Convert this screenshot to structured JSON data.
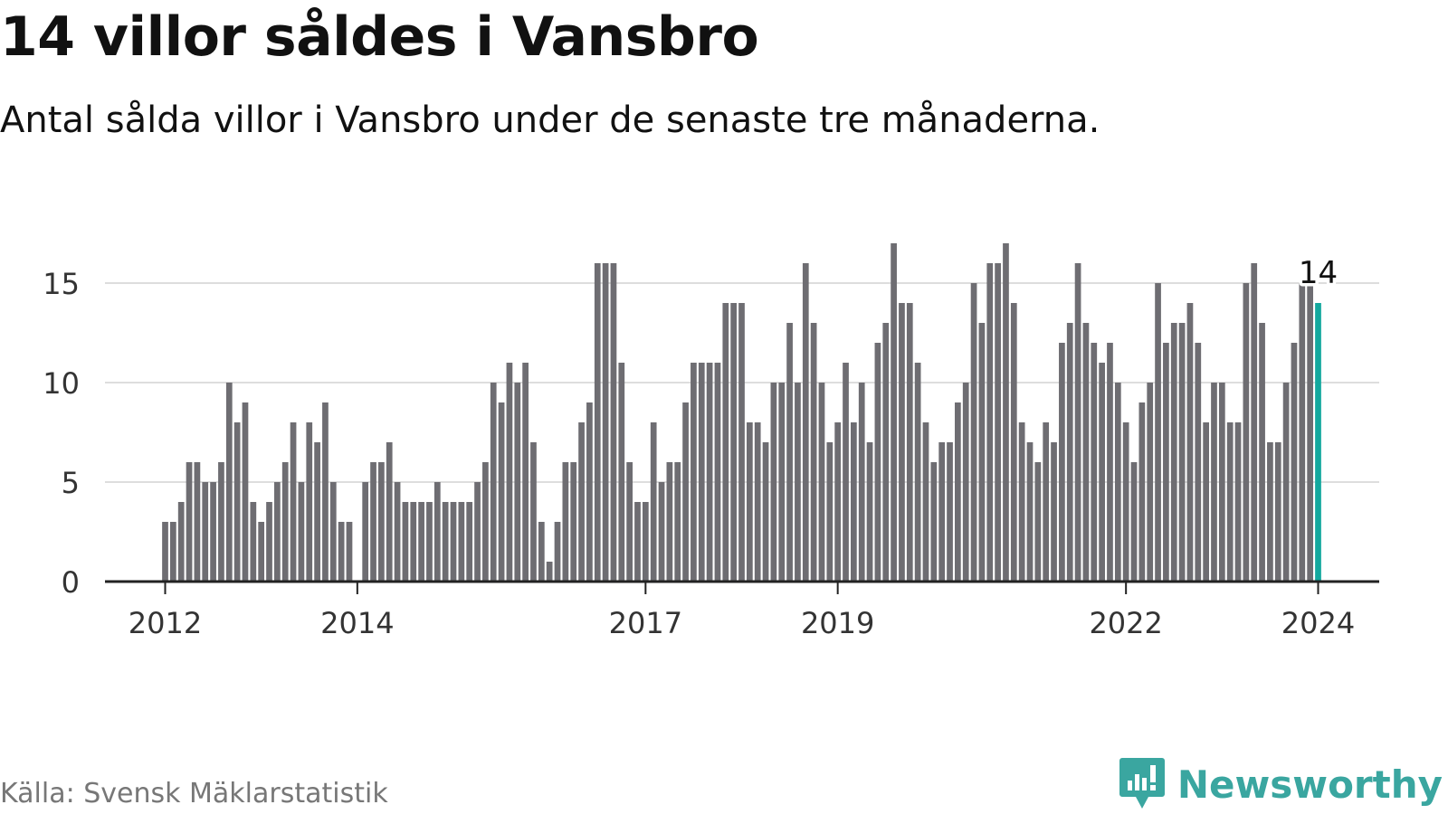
{
  "title": "14 villor såldes i Vansbro",
  "subtitle": "Antal sålda villor i Vansbro under de senaste tre månaderna.",
  "source": "Källa: Svensk Mäklarstatistik",
  "brand": {
    "name": "Newsworthy",
    "icon": "newsworthy-logo-icon",
    "color": "#3aa6a0"
  },
  "colors": {
    "bar": "#6e6d72",
    "highlight": "#13a89e",
    "grid": "#dddddd",
    "axis": "#222222",
    "tick_text": "#333333"
  },
  "chart_data": {
    "type": "bar",
    "title": "14 villor såldes i Vansbro",
    "xlabel": "",
    "ylabel": "",
    "ylim": [
      0,
      17.5
    ],
    "yticks": [
      0,
      5,
      10,
      15
    ],
    "grid": true,
    "x_start": "2012-01",
    "x_end": "2024-03",
    "x_tick_labels": [
      {
        "label": "2012",
        "index": 0
      },
      {
        "label": "2014",
        "index": 24
      },
      {
        "label": "2017",
        "index": 60
      },
      {
        "label": "2019",
        "index": 84
      },
      {
        "label": "2022",
        "index": 120
      },
      {
        "label": "2024",
        "index": 144
      }
    ],
    "series": [
      {
        "name": "Antal sålda villor (rullande tre månader)",
        "values": [
          3,
          3,
          4,
          6,
          6,
          5,
          5,
          6,
          10,
          8,
          9,
          4,
          3,
          4,
          5,
          6,
          8,
          5,
          8,
          7,
          9,
          5,
          3,
          3,
          0,
          5,
          6,
          6,
          7,
          5,
          4,
          4,
          4,
          4,
          5,
          4,
          4,
          4,
          4,
          5,
          6,
          10,
          9,
          11,
          10,
          11,
          7,
          3,
          1,
          3,
          6,
          6,
          8,
          9,
          16,
          16,
          16,
          11,
          6,
          4,
          4,
          8,
          5,
          6,
          6,
          9,
          11,
          11,
          11,
          11,
          14,
          14,
          14,
          8,
          8,
          7,
          10,
          10,
          13,
          10,
          16,
          13,
          10,
          7,
          8,
          11,
          8,
          10,
          7,
          12,
          13,
          17,
          14,
          14,
          11,
          8,
          6,
          7,
          7,
          9,
          10,
          15,
          13,
          16,
          16,
          17,
          14,
          8,
          7,
          6,
          8,
          7,
          12,
          13,
          16,
          13,
          12,
          11,
          12,
          10,
          8,
          6,
          9,
          10,
          15,
          12,
          13,
          13,
          14,
          12,
          8,
          10,
          10,
          8,
          8,
          15,
          16,
          13,
          7,
          7,
          10,
          12,
          15,
          15,
          14
        ]
      }
    ],
    "highlight": {
      "index": 144,
      "value": 14,
      "label": "14"
    }
  }
}
